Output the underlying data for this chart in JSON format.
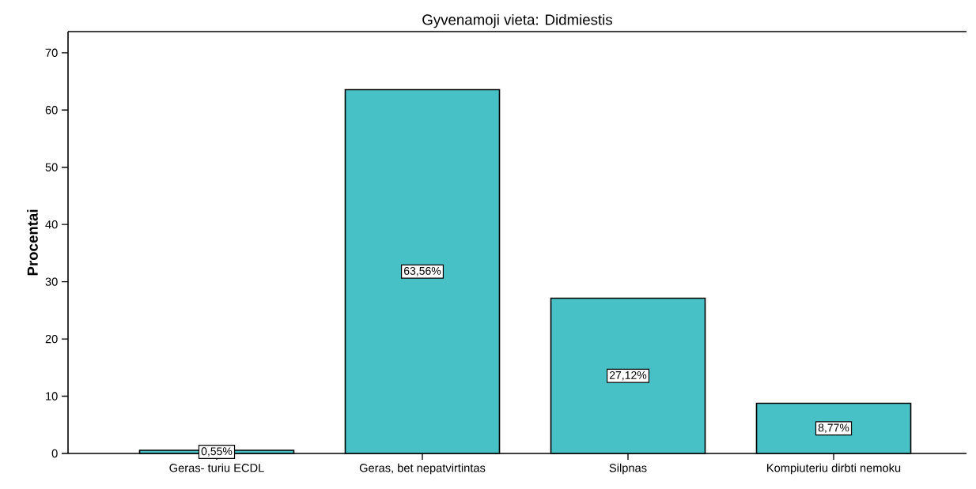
{
  "chart_data": {
    "type": "bar",
    "title": "Gyvenamoji vieta: Didmiestis",
    "ylabel": "Procentai",
    "categories": [
      "Geras- turiu ECDL",
      "Geras, bet nepatvirtintas",
      "Silpnas",
      "Kompiuteriu dirbti nemoku"
    ],
    "values": [
      0.55,
      63.56,
      27.12,
      8.77
    ],
    "value_labels": [
      "0,55%",
      "63,56%",
      "27,12%",
      "8,77%"
    ],
    "color": "#48c1c6",
    "ylim": [
      0,
      73.7
    ],
    "yticks": [
      0,
      10,
      20,
      30,
      40,
      50,
      60,
      70
    ],
    "grid": false
  }
}
